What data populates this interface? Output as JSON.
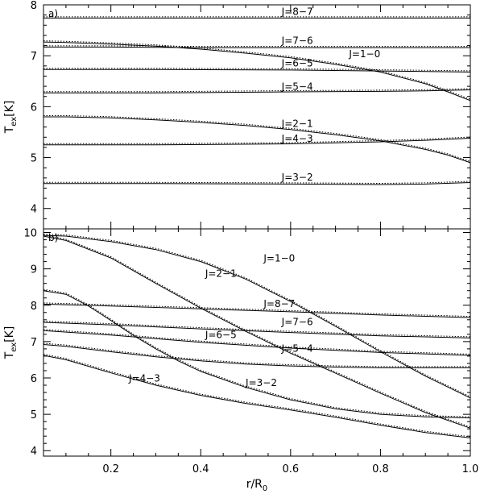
{
  "chart_data": [
    {
      "type": "line",
      "panel_label": "a)",
      "ylabel_main": "T",
      "ylabel_sub": "ex",
      "ylabel_unit": "[K]",
      "xlim": [
        0.05,
        1.0
      ],
      "ylim": [
        3.6,
        8.0
      ],
      "y_ticks": [
        4,
        5,
        6,
        7,
        8
      ],
      "grid": false,
      "series": [
        {
          "name": "J=8−7",
          "x": [
            0.05,
            0.3,
            0.6,
            0.8,
            1.0
          ],
          "y": [
            7.74,
            7.74,
            7.74,
            7.74,
            7.74
          ],
          "label_x": 0.58,
          "label_y": 7.8
        },
        {
          "name": "J=7−6",
          "x": [
            0.05,
            0.2,
            0.4,
            0.6,
            0.8,
            1.0
          ],
          "y": [
            7.17,
            7.17,
            7.16,
            7.16,
            7.16,
            7.16
          ],
          "label_x": 0.58,
          "label_y": 7.23
        },
        {
          "name": "J=1−0",
          "x": [
            0.05,
            0.1,
            0.2,
            0.3,
            0.4,
            0.5,
            0.6,
            0.7,
            0.8,
            0.9,
            0.95,
            1.0
          ],
          "y": [
            7.27,
            7.26,
            7.23,
            7.19,
            7.13,
            7.05,
            6.96,
            6.83,
            6.68,
            6.45,
            6.29,
            6.12
          ],
          "label_x": 0.73,
          "label_y": 6.97
        },
        {
          "name": "J=6−5",
          "x": [
            0.05,
            0.3,
            0.6,
            0.8,
            1.0
          ],
          "y": [
            6.73,
            6.73,
            6.72,
            6.7,
            6.68
          ],
          "label_x": 0.58,
          "label_y": 6.79
        },
        {
          "name": "J=5−4",
          "x": [
            0.05,
            0.3,
            0.6,
            0.8,
            0.9,
            1.0
          ],
          "y": [
            6.27,
            6.27,
            6.29,
            6.3,
            6.31,
            6.33
          ],
          "label_x": 0.58,
          "label_y": 6.33
        },
        {
          "name": "J=2−1",
          "x": [
            0.05,
            0.1,
            0.2,
            0.3,
            0.4,
            0.5,
            0.6,
            0.7,
            0.8,
            0.9,
            0.95,
            1.0
          ],
          "y": [
            5.8,
            5.8,
            5.78,
            5.74,
            5.69,
            5.63,
            5.55,
            5.45,
            5.33,
            5.16,
            5.05,
            4.9
          ],
          "label_x": 0.58,
          "label_y": 5.6
        },
        {
          "name": "J=4−3",
          "x": [
            0.05,
            0.3,
            0.6,
            0.8,
            0.9,
            1.0
          ],
          "y": [
            5.25,
            5.25,
            5.27,
            5.31,
            5.34,
            5.38
          ],
          "label_x": 0.58,
          "label_y": 5.31
        },
        {
          "name": "J=3−2",
          "x": [
            0.05,
            0.3,
            0.6,
            0.8,
            0.9,
            1.0
          ],
          "y": [
            4.49,
            4.49,
            4.48,
            4.47,
            4.48,
            4.51
          ],
          "label_x": 0.58,
          "label_y": 4.55
        }
      ]
    },
    {
      "type": "line",
      "panel_label": "b)",
      "xlabel_main": "r/R",
      "xlabel_sub": "0",
      "ylabel_main": "T",
      "ylabel_sub": "ex",
      "ylabel_unit": "[K]",
      "xlim": [
        0.05,
        1.0
      ],
      "ylim": [
        3.85,
        10.1
      ],
      "y_ticks": [
        4,
        5,
        6,
        7,
        8,
        9,
        10
      ],
      "x_ticks": [
        0.2,
        0.4,
        0.6,
        0.8,
        1.0
      ],
      "x_tick_labels": [
        "0.2",
        "0.4",
        "0.6",
        "0.8",
        "1.0"
      ],
      "grid": false,
      "series": [
        {
          "name": "J=1−0",
          "x": [
            0.05,
            0.1,
            0.2,
            0.3,
            0.4,
            0.5,
            0.6,
            0.7,
            0.8,
            0.9,
            1.0
          ],
          "y": [
            9.92,
            9.9,
            9.75,
            9.53,
            9.2,
            8.72,
            8.1,
            7.42,
            6.72,
            6.05,
            5.45
          ],
          "label_x": 0.54,
          "label_y": 9.2
        },
        {
          "name": "J=2−1",
          "x": [
            0.05,
            0.1,
            0.2,
            0.3,
            0.4,
            0.5,
            0.6,
            0.7,
            0.8,
            0.9,
            1.0
          ],
          "y": [
            9.9,
            9.78,
            9.3,
            8.6,
            7.92,
            7.28,
            6.68,
            6.13,
            5.58,
            5.05,
            4.62
          ],
          "label_x": 0.41,
          "label_y": 8.78
        },
        {
          "name": "J=8−7",
          "x": [
            0.05,
            0.2,
            0.4,
            0.6,
            0.8,
            1.0
          ],
          "y": [
            8.03,
            7.98,
            7.9,
            7.82,
            7.73,
            7.66
          ],
          "label_x": 0.54,
          "label_y": 7.95
        },
        {
          "name": "J=7−6",
          "x": [
            0.05,
            0.2,
            0.4,
            0.6,
            0.8,
            1.0
          ],
          "y": [
            7.53,
            7.46,
            7.35,
            7.25,
            7.16,
            7.1
          ],
          "label_x": 0.58,
          "label_y": 7.45
        },
        {
          "name": "J=6−5",
          "x": [
            0.05,
            0.2,
            0.4,
            0.6,
            0.8,
            1.0
          ],
          "y": [
            7.3,
            7.18,
            6.98,
            6.82,
            6.7,
            6.62
          ],
          "label_x": 0.41,
          "label_y": 7.1
        },
        {
          "name": "J=5−4",
          "x": [
            0.05,
            0.1,
            0.2,
            0.3,
            0.4,
            0.5,
            0.6,
            0.7,
            0.8,
            0.9,
            1.0
          ],
          "y": [
            6.92,
            6.87,
            6.72,
            6.58,
            6.47,
            6.38,
            6.33,
            6.3,
            6.28,
            6.28,
            6.28
          ],
          "label_x": 0.58,
          "label_y": 6.72
        },
        {
          "name": "J=3−2",
          "x": [
            0.05,
            0.1,
            0.15,
            0.2,
            0.25,
            0.3,
            0.35,
            0.4,
            0.5,
            0.6,
            0.7,
            0.8,
            0.9,
            1.0
          ],
          "y": [
            8.4,
            8.3,
            7.98,
            7.58,
            7.17,
            6.8,
            6.47,
            6.18,
            5.74,
            5.4,
            5.15,
            5.0,
            4.93,
            4.9
          ],
          "label_x": 0.5,
          "label_y": 5.78
        },
        {
          "name": "J=4−3",
          "x": [
            0.05,
            0.1,
            0.2,
            0.3,
            0.4,
            0.5,
            0.6,
            0.7,
            0.8,
            0.9,
            1.0
          ],
          "y": [
            6.62,
            6.5,
            6.14,
            5.8,
            5.52,
            5.3,
            5.12,
            4.92,
            4.7,
            4.5,
            4.35
          ],
          "label_x": 0.24,
          "label_y": 5.9
        }
      ]
    }
  ]
}
